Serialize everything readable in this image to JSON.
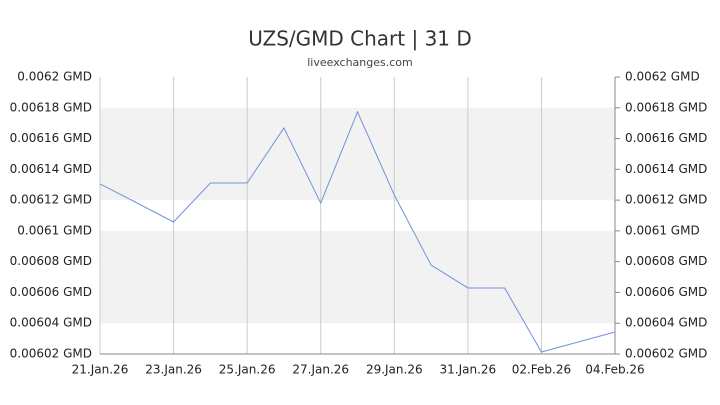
{
  "chart_data": {
    "type": "line",
    "title": "UZS/GMD Chart | 31 D",
    "subtitle": "liveexchanges.com",
    "categories": [
      "21.Jan.26",
      null,
      "23.Jan.26",
      null,
      "25.Jan.26",
      null,
      "27.Jan.26",
      null,
      "29.Jan.26",
      null,
      "31.Jan.26",
      null,
      "02.Feb.26",
      null,
      "04.Feb.26"
    ],
    "series": [
      {
        "name": "UZS/GMD",
        "color": "#6f93d8",
        "values": [
          0.0061305,
          0.0061182,
          0.0061058,
          0.0061311,
          0.0061311,
          0.0061669,
          0.0061181,
          0.0061773,
          0.0061233,
          0.0060778,
          0.0060629,
          0.0060629,
          0.0060213,
          0.0060278,
          0.0060343
        ]
      }
    ],
    "ylim": [
      0.00602,
      0.0062
    ],
    "yticks": [
      {
        "value": 0.00602,
        "label": "0.00602 GMD"
      },
      {
        "value": 0.00604,
        "label": "0.00604 GMD"
      },
      {
        "value": 0.00606,
        "label": "0.00606 GMD"
      },
      {
        "value": 0.00608,
        "label": "0.00608 GMD"
      },
      {
        "value": 0.0061,
        "label": "0.0061 GMD"
      },
      {
        "value": 0.00612,
        "label": "0.00612 GMD"
      },
      {
        "value": 0.00614,
        "label": "0.00614 GMD"
      },
      {
        "value": 0.00616,
        "label": "0.00616 GMD"
      },
      {
        "value": 0.00618,
        "label": "0.00618 GMD"
      },
      {
        "value": 0.0062,
        "label": "0.0062 GMD"
      }
    ],
    "grid": true
  }
}
